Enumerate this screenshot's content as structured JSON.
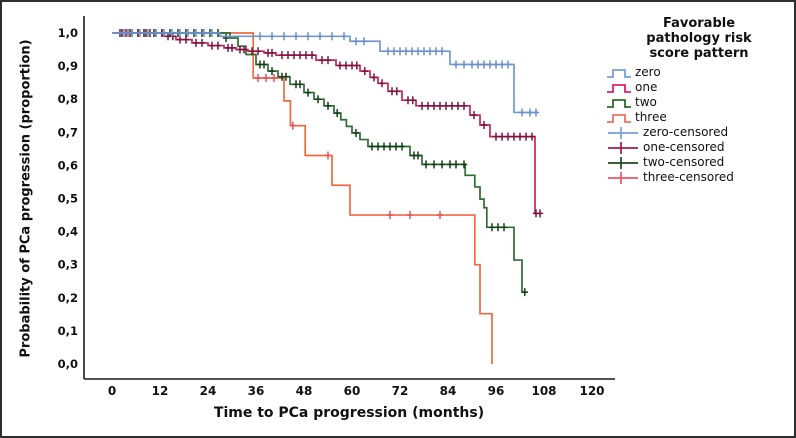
{
  "frame": {
    "background": "#ffffff",
    "border_color": "#2e2e2e"
  },
  "chart_data": {
    "type": "line",
    "subtype": "kaplan-meier-step",
    "title": "",
    "xlabel": "Time to PCa progression (months)",
    "ylabel": "Probability of PCa progression (proportion)",
    "xlim": [
      0,
      120
    ],
    "ylim": [
      0.0,
      1.0
    ],
    "grid": false,
    "x_tick_values": [
      0,
      12,
      24,
      36,
      48,
      60,
      72,
      84,
      96,
      108,
      120
    ],
    "x_tick_labels": [
      "0",
      "12",
      "24",
      "36",
      "48",
      "60",
      "72",
      "84",
      "96",
      "108",
      "120"
    ],
    "y_tick_values": [
      1.0,
      0.9,
      0.8,
      0.7,
      0.6,
      0.5,
      0.4,
      0.3,
      0.2,
      0.1,
      0.0
    ],
    "y_tick_labels": [
      "1,0",
      "0,9",
      "0,8",
      "0,7",
      "0,6",
      "0,5",
      "0,4",
      "0,3",
      "0,2",
      "0,1",
      "0,0"
    ],
    "axis_color": "#1a1a1a",
    "legend": {
      "position": "right",
      "title_lines": [
        "Favorable",
        "pathology risk",
        "score pattern"
      ],
      "entries": [
        {
          "label": "zero",
          "kind": "step",
          "color": "#7B9FD6"
        },
        {
          "label": "one",
          "kind": "step",
          "color": "#D6246E"
        },
        {
          "label": "two",
          "kind": "step",
          "color": "#2E6B33"
        },
        {
          "label": "three",
          "kind": "step",
          "color": "#EE7163"
        },
        {
          "label": "zero-censored",
          "kind": "censor",
          "color": "#7B9FD6"
        },
        {
          "label": "one-censored",
          "kind": "censor",
          "color": "#A01A50"
        },
        {
          "label": "two-censored",
          "kind": "censor",
          "color": "#1C4A22"
        },
        {
          "label": "three-censored",
          "kind": "censor",
          "color": "#E85562"
        }
      ]
    },
    "series": [
      {
        "name": "three",
        "color": "#F06A41",
        "censor_color": "#E45260",
        "end_month": 95,
        "steps": [
          [
            0,
            1.0
          ],
          [
            35.3,
            0.864
          ],
          [
            43,
            0.795
          ],
          [
            44.6,
            0.72
          ],
          [
            48.3,
            0.63
          ],
          [
            55,
            0.54
          ],
          [
            59.5,
            0.45
          ],
          [
            90.7,
            0.3
          ],
          [
            92,
            0.152
          ],
          [
            95,
            0.0
          ]
        ],
        "censors": [
          [
            4,
            1
          ],
          [
            8,
            1
          ],
          [
            36.5,
            0.864
          ],
          [
            38.5,
            0.864
          ],
          [
            40.5,
            0.864
          ],
          [
            45.2,
            0.72
          ],
          [
            54,
            0.63
          ],
          [
            69.5,
            0.45
          ],
          [
            74.5,
            0.45
          ],
          [
            82,
            0.45
          ]
        ]
      },
      {
        "name": "two",
        "color": "#2F6D34",
        "censor_color": "#123F19",
        "end_month": 103.5,
        "steps": [
          [
            0,
            1.0
          ],
          [
            29.5,
            0.985
          ],
          [
            31.5,
            0.96
          ],
          [
            33.5,
            0.935
          ],
          [
            36,
            0.905
          ],
          [
            39,
            0.885
          ],
          [
            41.5,
            0.868
          ],
          [
            44.5,
            0.845
          ],
          [
            48,
            0.82
          ],
          [
            50.5,
            0.8
          ],
          [
            53,
            0.78
          ],
          [
            55.5,
            0.758
          ],
          [
            57.2,
            0.738
          ],
          [
            58.6,
            0.718
          ],
          [
            60,
            0.698
          ],
          [
            62,
            0.678
          ],
          [
            64,
            0.657
          ],
          [
            74.5,
            0.63
          ],
          [
            77.5,
            0.603
          ],
          [
            88.3,
            0.57
          ],
          [
            90.7,
            0.535
          ],
          [
            92,
            0.498
          ],
          [
            93,
            0.472
          ],
          [
            93.7,
            0.413
          ],
          [
            100.5,
            0.314
          ],
          [
            102.5,
            0.217
          ]
        ],
        "censors": [
          [
            2.5,
            1
          ],
          [
            4.5,
            1
          ],
          [
            6.5,
            1
          ],
          [
            8.5,
            1
          ],
          [
            10.5,
            1
          ],
          [
            12.5,
            1
          ],
          [
            14.5,
            1
          ],
          [
            16.5,
            1
          ],
          [
            18.5,
            1
          ],
          [
            20.5,
            1
          ],
          [
            22.5,
            1
          ],
          [
            24.5,
            1
          ],
          [
            26.5,
            1
          ],
          [
            28.5,
            0.985
          ],
          [
            37,
            0.905
          ],
          [
            38,
            0.905
          ],
          [
            40,
            0.885
          ],
          [
            42.5,
            0.868
          ],
          [
            43.5,
            0.868
          ],
          [
            46,
            0.845
          ],
          [
            47,
            0.845
          ],
          [
            49,
            0.82
          ],
          [
            51.5,
            0.8
          ],
          [
            54,
            0.78
          ],
          [
            56.3,
            0.758
          ],
          [
            61,
            0.698
          ],
          [
            65,
            0.657
          ],
          [
            66.5,
            0.657
          ],
          [
            68,
            0.657
          ],
          [
            69.5,
            0.657
          ],
          [
            71,
            0.657
          ],
          [
            72.5,
            0.657
          ],
          [
            75.5,
            0.63
          ],
          [
            76.5,
            0.63
          ],
          [
            78.5,
            0.603
          ],
          [
            80.5,
            0.603
          ],
          [
            82.5,
            0.603
          ],
          [
            84.5,
            0.603
          ],
          [
            86,
            0.603
          ],
          [
            88,
            0.603
          ],
          [
            95,
            0.413
          ],
          [
            96.5,
            0.413
          ],
          [
            98,
            0.413
          ],
          [
            103.2,
            0.217
          ]
        ]
      },
      {
        "name": "one",
        "color": "#C42858",
        "censor_color": "#7E1240",
        "end_month": 107,
        "steps": [
          [
            0,
            1.0
          ],
          [
            13,
            0.99
          ],
          [
            16,
            0.98
          ],
          [
            20,
            0.97
          ],
          [
            24,
            0.962
          ],
          [
            28,
            0.955
          ],
          [
            31,
            0.95
          ],
          [
            34,
            0.945
          ],
          [
            38,
            0.94
          ],
          [
            41,
            0.933
          ],
          [
            51,
            0.918
          ],
          [
            56,
            0.902
          ],
          [
            62,
            0.885
          ],
          [
            64.5,
            0.866
          ],
          [
            66.5,
            0.848
          ],
          [
            69,
            0.824
          ],
          [
            72.5,
            0.797
          ],
          [
            76,
            0.78
          ],
          [
            89.5,
            0.752
          ],
          [
            92,
            0.722
          ],
          [
            94.5,
            0.687
          ],
          [
            105.75,
            0.455
          ]
        ],
        "censors": [
          [
            2,
            1
          ],
          [
            3.5,
            1
          ],
          [
            5,
            1
          ],
          [
            6.5,
            1
          ],
          [
            8,
            1
          ],
          [
            9.5,
            1
          ],
          [
            11,
            1
          ],
          [
            12.5,
            1
          ],
          [
            14,
            0.99
          ],
          [
            15.2,
            0.99
          ],
          [
            17,
            0.98
          ],
          [
            18.5,
            0.98
          ],
          [
            21,
            0.97
          ],
          [
            22.5,
            0.97
          ],
          [
            25,
            0.962
          ],
          [
            26.5,
            0.962
          ],
          [
            29,
            0.955
          ],
          [
            30,
            0.955
          ],
          [
            32,
            0.95
          ],
          [
            33,
            0.95
          ],
          [
            35,
            0.945
          ],
          [
            36.5,
            0.945
          ],
          [
            39,
            0.94
          ],
          [
            40,
            0.94
          ],
          [
            42.5,
            0.933
          ],
          [
            44,
            0.933
          ],
          [
            45.5,
            0.933
          ],
          [
            47,
            0.933
          ],
          [
            48.5,
            0.933
          ],
          [
            50,
            0.933
          ],
          [
            52.5,
            0.918
          ],
          [
            54,
            0.918
          ],
          [
            57,
            0.902
          ],
          [
            58.5,
            0.902
          ],
          [
            60,
            0.902
          ],
          [
            61.2,
            0.902
          ],
          [
            63.2,
            0.885
          ],
          [
            65.5,
            0.866
          ],
          [
            67.5,
            0.848
          ],
          [
            70,
            0.824
          ],
          [
            71.2,
            0.824
          ],
          [
            74,
            0.797
          ],
          [
            75.2,
            0.797
          ],
          [
            77.5,
            0.78
          ],
          [
            79,
            0.78
          ],
          [
            80.5,
            0.78
          ],
          [
            82,
            0.78
          ],
          [
            83.5,
            0.78
          ],
          [
            85,
            0.78
          ],
          [
            86.5,
            0.78
          ],
          [
            88,
            0.78
          ],
          [
            90.5,
            0.752
          ],
          [
            93,
            0.722
          ],
          [
            96,
            0.687
          ],
          [
            97.5,
            0.687
          ],
          [
            99,
            0.687
          ],
          [
            100.5,
            0.687
          ],
          [
            102,
            0.687
          ],
          [
            103.5,
            0.687
          ],
          [
            105,
            0.687
          ],
          [
            106,
            0.455
          ],
          [
            107,
            0.455
          ]
        ]
      },
      {
        "name": "zero",
        "color": "#7397CF",
        "censor_color": "#6A8FC9",
        "end_month": 106.5,
        "steps": [
          [
            0,
            1.0
          ],
          [
            27,
            0.99
          ],
          [
            59.5,
            0.975
          ],
          [
            67,
            0.945
          ],
          [
            84.5,
            0.905
          ],
          [
            100.5,
            0.76
          ]
        ],
        "censors": [
          [
            3,
            1
          ],
          [
            5,
            1
          ],
          [
            7,
            1
          ],
          [
            9,
            1
          ],
          [
            11,
            1
          ],
          [
            13,
            1
          ],
          [
            15,
            1
          ],
          [
            17,
            1
          ],
          [
            19,
            1
          ],
          [
            21,
            1
          ],
          [
            23,
            1
          ],
          [
            25,
            1
          ],
          [
            37,
            0.99
          ],
          [
            40,
            0.99
          ],
          [
            43,
            0.99
          ],
          [
            46,
            0.99
          ],
          [
            49,
            0.99
          ],
          [
            52,
            0.99
          ],
          [
            55,
            0.99
          ],
          [
            58,
            0.99
          ],
          [
            61,
            0.975
          ],
          [
            63,
            0.975
          ],
          [
            69,
            0.945
          ],
          [
            70.5,
            0.945
          ],
          [
            72,
            0.945
          ],
          [
            73.5,
            0.945
          ],
          [
            75,
            0.945
          ],
          [
            76.5,
            0.945
          ],
          [
            78,
            0.945
          ],
          [
            79.5,
            0.945
          ],
          [
            81,
            0.945
          ],
          [
            82.5,
            0.945
          ],
          [
            86,
            0.905
          ],
          [
            88,
            0.905
          ],
          [
            90,
            0.905
          ],
          [
            91.5,
            0.905
          ],
          [
            93,
            0.905
          ],
          [
            94.5,
            0.905
          ],
          [
            96,
            0.905
          ],
          [
            97.5,
            0.905
          ],
          [
            99,
            0.905
          ],
          [
            102.5,
            0.76
          ],
          [
            104.5,
            0.76
          ],
          [
            106,
            0.76
          ]
        ]
      }
    ]
  }
}
